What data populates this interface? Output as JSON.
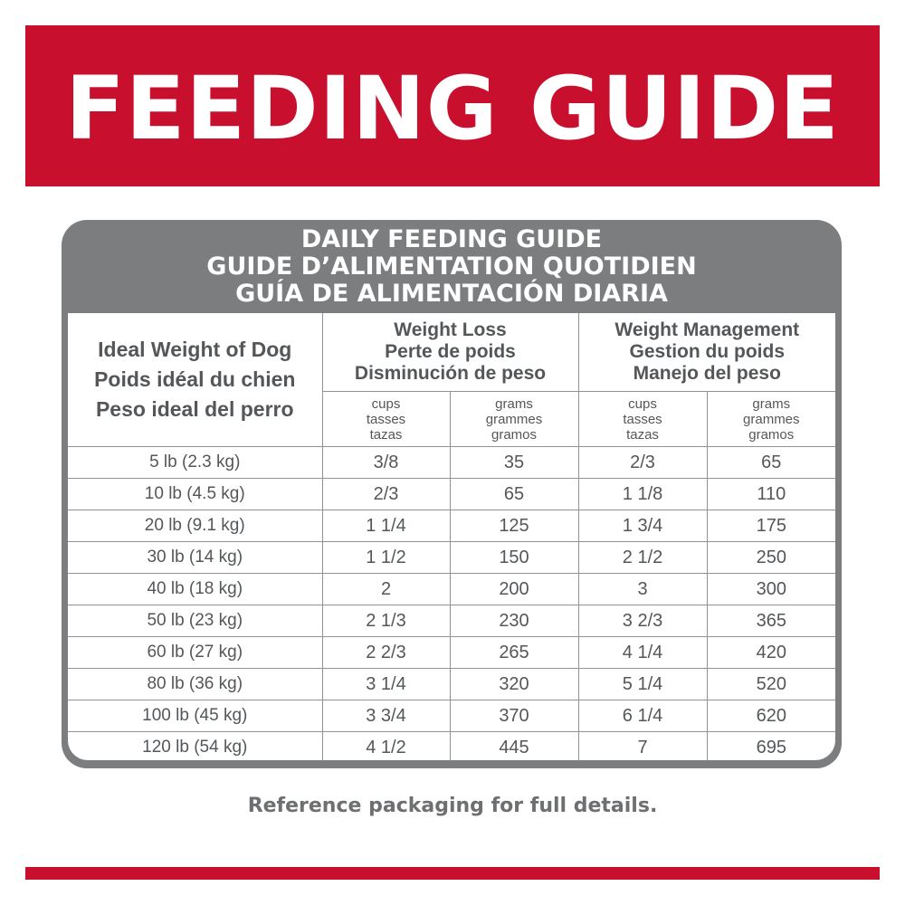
{
  "banner": {
    "title": "FEEDING GUIDE"
  },
  "panel": {
    "title_lines": [
      "DAILY FEEDING GUIDE",
      "GUIDE D’ALIMENTATION QUOTIDIEN",
      "GUÍA DE ALIMENTACIÓN DIARIA"
    ]
  },
  "table": {
    "weight_header": [
      "Ideal Weight of Dog",
      "Poids idéal du chien",
      "Peso ideal del perro"
    ],
    "groups": [
      {
        "lines": [
          "Weight Loss",
          "Perte de poids",
          "Disminución de peso"
        ]
      },
      {
        "lines": [
          "Weight Management",
          "Gestion du poids",
          "Manejo del peso"
        ]
      }
    ],
    "units": [
      [
        "cups",
        "tasses",
        "tazas"
      ],
      [
        "grams",
        "grammes",
        "gramos"
      ],
      [
        "cups",
        "tasses",
        "tazas"
      ],
      [
        "grams",
        "grammes",
        "gramos"
      ]
    ],
    "rows": [
      [
        "5 lb (2.3 kg)",
        "3/8",
        "35",
        "2/3",
        "65"
      ],
      [
        "10 lb (4.5 kg)",
        "2/3",
        "65",
        "1 1/8",
        "110"
      ],
      [
        "20 lb (9.1 kg)",
        "1 1/4",
        "125",
        "1 3/4",
        "175"
      ],
      [
        "30 lb (14 kg)",
        "1 1/2",
        "150",
        "2 1/2",
        "250"
      ],
      [
        "40 lb (18 kg)",
        "2",
        "200",
        "3",
        "300"
      ],
      [
        "50 lb (23 kg)",
        "2 1/3",
        "230",
        "3 2/3",
        "365"
      ],
      [
        "60 lb (27 kg)",
        "2 2/3",
        "265",
        "4 1/4",
        "420"
      ],
      [
        "80 lb (36 kg)",
        "3 1/4",
        "320",
        "5 1/4",
        "520"
      ],
      [
        "100 lb (45 kg)",
        "3 3/4",
        "370",
        "6 1/4",
        "620"
      ],
      [
        "120 lb (54 kg)",
        "4 1/2",
        "445",
        "7",
        "695"
      ]
    ]
  },
  "footer": {
    "note": "Reference packaging for full details."
  },
  "colors": {
    "brand_red": "#c8102e",
    "panel_gray": "#7b7d7f",
    "text_gray": "#545759"
  }
}
